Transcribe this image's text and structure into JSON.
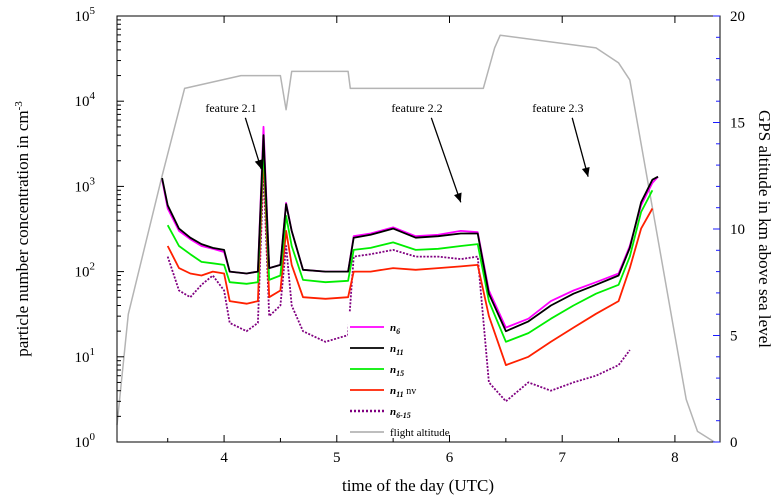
{
  "chart_data": {
    "type": "line",
    "xlabel": "time of the day (UTC)",
    "ylabel_left": "particle number concentration in cm",
    "ylabel_left_exponent": "-3",
    "ylabel_right": "GPS altitude in km above sea level",
    "xlim": [
      3.05,
      8.4
    ],
    "y_left_lim": [
      1,
      100000
    ],
    "y_left_scale": "log",
    "y_right_lim": [
      0,
      20
    ],
    "x_ticks": [
      "4",
      "5",
      "6",
      "7",
      "8"
    ],
    "y_left_ticks": [
      {
        "base": "10",
        "exp": "0"
      },
      {
        "base": "10",
        "exp": "1"
      },
      {
        "base": "10",
        "exp": "2"
      },
      {
        "base": "10",
        "exp": "3"
      },
      {
        "base": "10",
        "exp": "4"
      },
      {
        "base": "10",
        "exp": "5"
      }
    ],
    "y_right_ticks": [
      "0",
      "5",
      "10",
      "15",
      "20"
    ],
    "legend_position": "bottom-center",
    "series": [
      {
        "id": "n6",
        "name": "n",
        "sub": "6",
        "suffix": "",
        "color": "#ff00ff",
        "dash": false,
        "x": [
          3.45,
          3.5,
          3.6,
          3.7,
          3.8,
          3.9,
          4.0,
          4.05,
          4.2,
          4.3,
          4.35,
          4.4,
          4.5,
          4.55,
          4.6,
          4.7,
          4.9,
          5.1,
          5.15,
          5.3,
          5.5,
          5.7,
          5.9,
          6.1,
          6.25,
          6.35,
          6.5,
          6.7,
          6.9,
          7.1,
          7.3,
          7.5,
          7.6,
          7.7,
          7.8,
          7.85
        ],
        "y": [
          1200,
          550,
          300,
          240,
          200,
          185,
          170,
          100,
          95,
          100,
          5000,
          110,
          120,
          640,
          300,
          105,
          100,
          100,
          260,
          280,
          330,
          260,
          270,
          300,
          290,
          60,
          22,
          28,
          45,
          60,
          75,
          95,
          200,
          600,
          1100,
          1300
        ]
      },
      {
        "id": "n11",
        "name": "n",
        "sub": "11",
        "suffix": "",
        "color": "#000000",
        "dash": false,
        "x": [
          3.45,
          3.5,
          3.6,
          3.7,
          3.8,
          3.9,
          4.0,
          4.05,
          4.2,
          4.3,
          4.35,
          4.4,
          4.5,
          4.55,
          4.6,
          4.7,
          4.9,
          5.1,
          5.15,
          5.3,
          5.5,
          5.7,
          5.9,
          6.1,
          6.25,
          6.35,
          6.5,
          6.7,
          6.9,
          7.1,
          7.3,
          7.5,
          7.6,
          7.7,
          7.8,
          7.85
        ],
        "y": [
          1250,
          600,
          320,
          250,
          210,
          190,
          180,
          100,
          95,
          100,
          4000,
          110,
          120,
          620,
          300,
          105,
          100,
          100,
          250,
          270,
          320,
          250,
          260,
          280,
          280,
          55,
          20,
          26,
          40,
          55,
          70,
          90,
          190,
          650,
          1200,
          1300
        ]
      },
      {
        "id": "n15",
        "name": "n",
        "sub": "15",
        "suffix": "",
        "color": "#00ee00",
        "dash": false,
        "x": [
          3.5,
          3.6,
          3.7,
          3.8,
          3.9,
          4.0,
          4.05,
          4.2,
          4.3,
          4.35,
          4.4,
          4.5,
          4.55,
          4.6,
          4.7,
          4.9,
          5.1,
          5.15,
          5.3,
          5.5,
          5.7,
          5.9,
          6.1,
          6.25,
          6.35,
          6.5,
          6.7,
          6.9,
          7.1,
          7.3,
          7.5,
          7.6,
          7.7,
          7.8
        ],
        "y": [
          350,
          200,
          160,
          130,
          125,
          120,
          75,
          72,
          75,
          3000,
          80,
          90,
          450,
          200,
          80,
          75,
          78,
          180,
          190,
          220,
          180,
          185,
          200,
          210,
          45,
          15,
          19,
          28,
          40,
          55,
          70,
          150,
          500,
          900
        ]
      },
      {
        "id": "n11nv",
        "name": "n",
        "sub": "11",
        "suffix": " nv",
        "color": "#ff2000",
        "dash": false,
        "x": [
          3.5,
          3.6,
          3.7,
          3.8,
          3.9,
          4.0,
          4.05,
          4.2,
          4.3,
          4.35,
          4.4,
          4.5,
          4.55,
          4.6,
          4.7,
          4.9,
          5.1,
          5.15,
          5.3,
          5.5,
          5.7,
          5.9,
          6.1,
          6.25,
          6.35,
          6.5,
          6.7,
          6.9,
          7.1,
          7.3,
          7.5,
          7.6,
          7.7,
          7.8
        ],
        "y": [
          200,
          110,
          95,
          90,
          100,
          95,
          45,
          42,
          45,
          2500,
          50,
          60,
          300,
          120,
          50,
          48,
          50,
          100,
          100,
          110,
          105,
          110,
          115,
          120,
          30,
          8,
          10,
          15,
          22,
          32,
          45,
          110,
          320,
          550
        ]
      },
      {
        "id": "n6_15",
        "name": "n",
        "sub": "6-15",
        "suffix": "",
        "color": "#800080",
        "dash": true,
        "x": [
          3.5,
          3.6,
          3.7,
          3.8,
          3.9,
          4.0,
          4.05,
          4.2,
          4.3,
          4.35,
          4.4,
          4.5,
          4.55,
          4.6,
          4.7,
          4.9,
          5.1,
          5.15,
          5.3,
          5.5,
          5.7,
          5.9,
          6.1,
          6.25,
          6.35,
          6.5,
          6.7,
          6.9,
          7.1,
          7.3,
          7.5,
          7.6
        ],
        "y": [
          150,
          60,
          50,
          70,
          90,
          60,
          25,
          20,
          25,
          1500,
          30,
          40,
          200,
          40,
          20,
          15,
          18,
          150,
          160,
          180,
          150,
          150,
          140,
          150,
          5,
          3,
          5,
          4,
          5,
          6,
          8,
          12
        ]
      },
      {
        "id": "alt",
        "name": "flight altitude",
        "sub": "",
        "suffix": "",
        "color": "#b4b4b4",
        "dash": false,
        "axis": "right",
        "x": [
          3.05,
          3.15,
          3.45,
          3.65,
          4.15,
          4.5,
          4.55,
          4.6,
          5.1,
          5.12,
          6.3,
          6.4,
          6.45,
          7.3,
          7.5,
          7.6,
          7.8,
          8.0,
          8.1,
          8.2,
          8.35
        ],
        "y": [
          0.8,
          6,
          12.5,
          16.6,
          17.2,
          17.2,
          15.6,
          17.4,
          17.4,
          16.6,
          16.6,
          18.5,
          19.1,
          18.5,
          17.8,
          17.0,
          11.0,
          5.0,
          2.0,
          0.5,
          0
        ]
      }
    ],
    "annotations": [
      {
        "text": "feature 2.1",
        "tx": 4.1,
        "ty": 7500,
        "ax": 4.33,
        "ay": 1600
      },
      {
        "text": "feature 2.2",
        "tx": 5.75,
        "ty": 7500,
        "ax": 6.1,
        "ay": 650
      },
      {
        "text": "feature 2.3",
        "tx": 7.0,
        "ty": 7500,
        "ax": 7.23,
        "ay": 1300
      }
    ]
  },
  "legend_altitude_label": "flight altitude"
}
